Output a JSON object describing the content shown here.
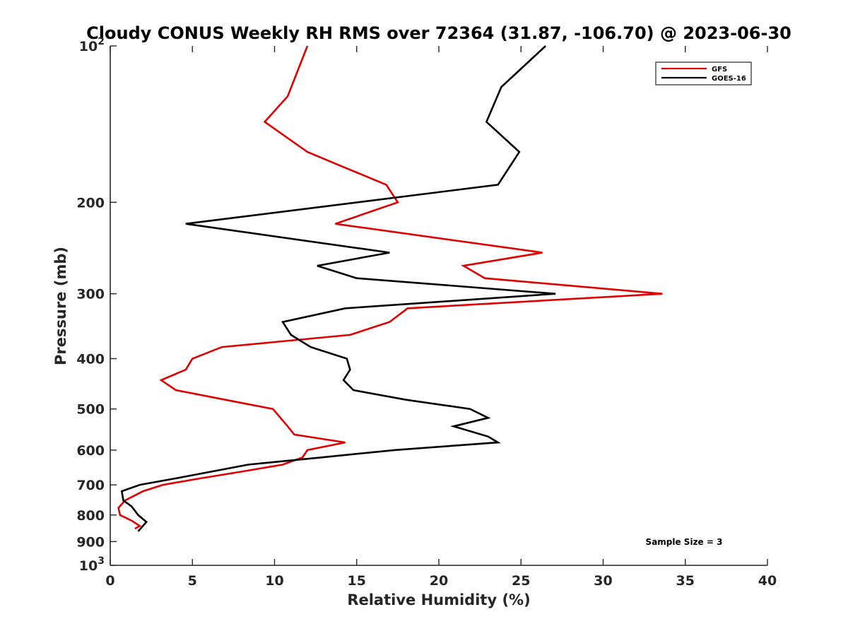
{
  "chart_data": {
    "type": "line",
    "title": "Cloudy CONUS Weekly RH RMS over 72364 (31.87, -106.70) @ 2023-06-30",
    "xlabel": "Relative Humidity (%)",
    "ylabel": "Pressure (mb)",
    "xlim": [
      0,
      40
    ],
    "ylim": [
      100,
      1000
    ],
    "yscale": "log",
    "y_reversed": true,
    "xticks": [
      "0",
      "5",
      "10",
      "15",
      "20",
      "25",
      "30",
      "35",
      "40"
    ],
    "xtick_values": [
      0,
      5,
      10,
      15,
      20,
      25,
      30,
      35,
      40
    ],
    "yticks": [
      {
        "value": 100,
        "base": "10",
        "exp": "2"
      },
      {
        "value": 200,
        "label": "200"
      },
      {
        "value": 300,
        "label": "300"
      },
      {
        "value": 400,
        "label": "400"
      },
      {
        "value": 500,
        "label": "500"
      },
      {
        "value": 600,
        "label": "600"
      },
      {
        "value": 700,
        "label": "700"
      },
      {
        "value": 800,
        "label": "800"
      },
      {
        "value": 900,
        "label": "900"
      },
      {
        "value": 1000,
        "base": "10",
        "exp": "3"
      }
    ],
    "legend_position": "top-right",
    "annotation": "Sample Size = 3",
    "series": [
      {
        "name": "GFS",
        "color": "#e00000",
        "points": [
          {
            "rh": 1.5,
            "p": 850
          },
          {
            "rh": 1.8,
            "p": 840
          },
          {
            "rh": 1.3,
            "p": 820
          },
          {
            "rh": 0.6,
            "p": 800
          },
          {
            "rh": 0.5,
            "p": 775
          },
          {
            "rh": 0.9,
            "p": 750
          },
          {
            "rh": 2.0,
            "p": 720
          },
          {
            "rh": 3.2,
            "p": 700
          },
          {
            "rh": 5.5,
            "p": 680
          },
          {
            "rh": 8.0,
            "p": 660
          },
          {
            "rh": 10.5,
            "p": 640
          },
          {
            "rh": 11.7,
            "p": 620
          },
          {
            "rh": 12.0,
            "p": 600
          },
          {
            "rh": 14.3,
            "p": 580
          },
          {
            "rh": 11.2,
            "p": 560
          },
          {
            "rh": 10.8,
            "p": 540
          },
          {
            "rh": 9.9,
            "p": 500
          },
          {
            "rh": 7.0,
            "p": 480
          },
          {
            "rh": 4.0,
            "p": 460
          },
          {
            "rh": 3.1,
            "p": 440
          },
          {
            "rh": 4.6,
            "p": 420
          },
          {
            "rh": 5.0,
            "p": 400
          },
          {
            "rh": 6.8,
            "p": 380
          },
          {
            "rh": 14.6,
            "p": 360
          },
          {
            "rh": 17.0,
            "p": 340
          },
          {
            "rh": 18.1,
            "p": 320
          },
          {
            "rh": 33.6,
            "p": 300
          },
          {
            "rh": 22.8,
            "p": 280
          },
          {
            "rh": 21.5,
            "p": 265
          },
          {
            "rh": 26.3,
            "p": 250
          },
          {
            "rh": 13.7,
            "p": 220
          },
          {
            "rh": 17.5,
            "p": 200
          },
          {
            "rh": 16.8,
            "p": 185
          },
          {
            "rh": 14.0,
            "p": 170
          },
          {
            "rh": 12.0,
            "p": 160
          },
          {
            "rh": 9.4,
            "p": 140
          },
          {
            "rh": 10.8,
            "p": 125
          },
          {
            "rh": 12.0,
            "p": 100
          }
        ]
      },
      {
        "name": "GOES-16",
        "color": "#000000",
        "points": [
          {
            "rh": 1.7,
            "p": 860
          },
          {
            "rh": 2.2,
            "p": 825
          },
          {
            "rh": 1.7,
            "p": 800
          },
          {
            "rh": 1.3,
            "p": 770
          },
          {
            "rh": 0.8,
            "p": 750
          },
          {
            "rh": 0.7,
            "p": 720
          },
          {
            "rh": 1.8,
            "p": 700
          },
          {
            "rh": 4.0,
            "p": 680
          },
          {
            "rh": 8.4,
            "p": 640
          },
          {
            "rh": 12.8,
            "p": 620
          },
          {
            "rh": 17.3,
            "p": 600
          },
          {
            "rh": 23.6,
            "p": 580
          },
          {
            "rh": 23.0,
            "p": 565
          },
          {
            "rh": 20.9,
            "p": 540
          },
          {
            "rh": 23.0,
            "p": 520
          },
          {
            "rh": 21.9,
            "p": 500
          },
          {
            "rh": 18.0,
            "p": 480
          },
          {
            "rh": 14.8,
            "p": 460
          },
          {
            "rh": 14.2,
            "p": 440
          },
          {
            "rh": 14.6,
            "p": 420
          },
          {
            "rh": 14.4,
            "p": 400
          },
          {
            "rh": 12.2,
            "p": 380
          },
          {
            "rh": 11.0,
            "p": 360
          },
          {
            "rh": 10.5,
            "p": 340
          },
          {
            "rh": 14.3,
            "p": 320
          },
          {
            "rh": 27.1,
            "p": 300
          },
          {
            "rh": 15.0,
            "p": 280
          },
          {
            "rh": 12.6,
            "p": 265
          },
          {
            "rh": 17.0,
            "p": 250
          },
          {
            "rh": 4.6,
            "p": 220
          },
          {
            "rh": 23.6,
            "p": 185
          },
          {
            "rh": 24.9,
            "p": 160
          },
          {
            "rh": 22.9,
            "p": 140
          },
          {
            "rh": 23.8,
            "p": 120
          },
          {
            "rh": 26.5,
            "p": 100
          }
        ]
      }
    ]
  }
}
